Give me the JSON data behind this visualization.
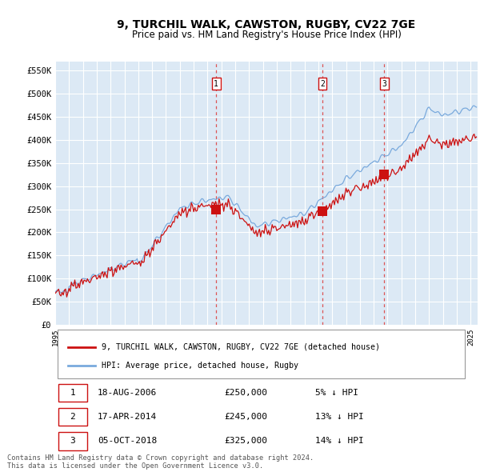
{
  "title": "9, TURCHIL WALK, CAWSTON, RUGBY, CV22 7GE",
  "subtitle": "Price paid vs. HM Land Registry's House Price Index (HPI)",
  "title_fontsize": 10,
  "subtitle_fontsize": 8.5,
  "xlim_start": 1995.0,
  "xlim_end": 2025.5,
  "ylim_min": 0,
  "ylim_max": 570000,
  "background_color": "#ffffff",
  "plot_bg_color": "#dce9f5",
  "grid_color": "#ffffff",
  "hpi_color": "#7aaadd",
  "price_color": "#cc1111",
  "marker_color": "#cc1111",
  "vline_color": "#dd4444",
  "transactions": [
    {
      "num": 1,
      "date": "18-AUG-2006",
      "price": 250000,
      "pct": "5%",
      "x": 2006.62
    },
    {
      "num": 2,
      "date": "17-APR-2014",
      "price": 245000,
      "pct": "13%",
      "x": 2014.29
    },
    {
      "num": 3,
      "date": "05-OCT-2018",
      "price": 325000,
      "pct": "14%",
      "x": 2018.75
    }
  ],
  "legend_label_price": "9, TURCHIL WALK, CAWSTON, RUGBY, CV22 7GE (detached house)",
  "legend_label_hpi": "HPI: Average price, detached house, Rugby",
  "footer_text": "Contains HM Land Registry data © Crown copyright and database right 2024.\nThis data is licensed under the Open Government Licence v3.0.",
  "yticks": [
    0,
    50000,
    100000,
    150000,
    200000,
    250000,
    300000,
    350000,
    400000,
    450000,
    500000,
    550000
  ],
  "ytick_labels": [
    "£0",
    "£50K",
    "£100K",
    "£150K",
    "£200K",
    "£250K",
    "£300K",
    "£350K",
    "£400K",
    "£450K",
    "£500K",
    "£550K"
  ]
}
